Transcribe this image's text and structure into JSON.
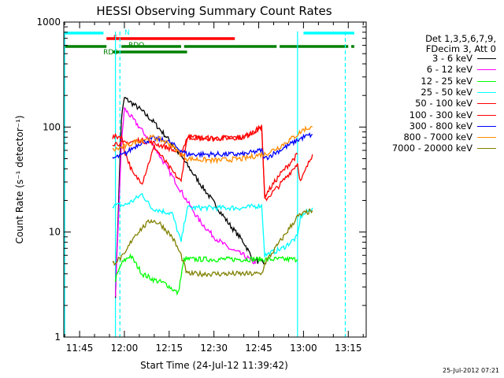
{
  "chart_data": {
    "type": "line",
    "title": "HESSI Observing Summary Count Rates",
    "xlabel": "Start Time (24-Jul-12 11:39:42)",
    "ylabel": "Count Rate (s⁻¹ detector⁻¹)",
    "yscale": "log",
    "ylim": [
      1,
      1000
    ],
    "y_ticks": [
      1,
      10,
      100,
      1000
    ],
    "y_tick_labels": [
      "1",
      "10",
      "100",
      "1000"
    ],
    "xlim": [
      "11:39:42",
      "13:21:00"
    ],
    "x_ticks": [
      "11:45",
      "12:00",
      "12:15",
      "12:30",
      "12:45",
      "13:00",
      "13:15"
    ],
    "x_minutes_axis_note": "x values below are clock times",
    "legend_header": [
      "Det 1,3,5,6,7,9,",
      "FDecim 3, Att 0"
    ],
    "legend_position": "right",
    "grid": false,
    "series": [
      {
        "name": "3 - 6 keV",
        "color": "#000000",
        "points": [
          [
            "11:57",
            "2.5"
          ],
          [
            "11:59",
            "120"
          ],
          [
            "12:00",
            "190"
          ],
          [
            "12:05",
            "150"
          ],
          [
            "12:10",
            "110"
          ],
          [
            "12:15",
            "75"
          ],
          [
            "12:20",
            "48"
          ],
          [
            "12:25",
            "30"
          ],
          [
            "12:30",
            "19"
          ],
          [
            "12:35",
            "12"
          ],
          [
            "12:40",
            "8"
          ],
          [
            "12:43",
            "5.5"
          ],
          [
            "12:47",
            "5"
          ]
        ]
      },
      {
        "name": "6 - 12 keV",
        "color": "#ff00ff",
        "points": [
          [
            "11:57",
            "2.5"
          ],
          [
            "11:59",
            "70"
          ],
          [
            "12:00",
            "150"
          ],
          [
            "12:05",
            "100"
          ],
          [
            "12:10",
            "65"
          ],
          [
            "12:15",
            "38"
          ],
          [
            "12:20",
            "22"
          ],
          [
            "12:25",
            "13"
          ],
          [
            "12:30",
            "9"
          ],
          [
            "12:35",
            "7"
          ],
          [
            "12:40",
            "6"
          ],
          [
            "12:44",
            "5"
          ]
        ]
      },
      {
        "name": "12 - 25 keV",
        "color": "#00ff00",
        "points": [
          [
            "11:57",
            "3.5"
          ],
          [
            "11:59",
            "5"
          ],
          [
            "12:02",
            "6"
          ],
          [
            "12:06",
            "4"
          ],
          [
            "12:10",
            "3.5"
          ],
          [
            "12:14",
            "3.2"
          ],
          [
            "12:18",
            "2.6"
          ],
          [
            "12:20",
            "5.5"
          ],
          [
            "12:30",
            "5.5"
          ],
          [
            "12:40",
            "5.5"
          ],
          [
            "12:47",
            "5.5"
          ],
          [
            "12:50",
            "5.5"
          ],
          [
            "12:56",
            "5.5"
          ],
          [
            "12:58",
            "5.5"
          ]
        ]
      },
      {
        "name": "25 - 50 keV",
        "color": "#00ffff",
        "points": [
          [
            "11:56",
            "18"
          ],
          [
            "11:58",
            "18"
          ],
          [
            "12:00",
            "18"
          ],
          [
            "12:03",
            "20"
          ],
          [
            "12:06",
            "23"
          ],
          [
            "12:09",
            "17"
          ],
          [
            "12:12",
            "16"
          ],
          [
            "12:16",
            "15"
          ],
          [
            "12:19",
            "8"
          ],
          [
            "12:21",
            "17"
          ],
          [
            "12:30",
            "17"
          ],
          [
            "12:40",
            "17"
          ],
          [
            "12:46",
            "18"
          ],
          [
            "12:47",
            "6"
          ],
          [
            "12:53",
            "7"
          ],
          [
            "12:58",
            "9"
          ],
          [
            "12:59",
            "14"
          ],
          [
            "13:03",
            "17"
          ]
        ]
      },
      {
        "name": "50 - 100 keV",
        "color": "#ff0000",
        "points": [
          [
            "11:56",
            "80"
          ],
          [
            "11:59",
            "82"
          ],
          [
            "12:00",
            "60"
          ],
          [
            "12:03",
            "35"
          ],
          [
            "12:06",
            "30"
          ],
          [
            "12:10",
            "65"
          ],
          [
            "12:13",
            "50"
          ],
          [
            "12:16",
            "38"
          ],
          [
            "12:19",
            "30"
          ],
          [
            "12:21",
            "80"
          ],
          [
            "12:30",
            "78"
          ],
          [
            "12:40",
            "80"
          ],
          [
            "12:46",
            "100"
          ],
          [
            "12:47",
            "20"
          ],
          [
            "12:52",
            "28"
          ],
          [
            "12:58",
            "45"
          ],
          [
            "12:59",
            "30"
          ],
          [
            "13:03",
            "55"
          ]
        ]
      },
      {
        "name": "100 - 300 keV",
        "color": "#ff0000",
        "points": [
          [
            "11:56",
            "70"
          ],
          [
            "12:00",
            "70"
          ],
          [
            "12:05",
            "75"
          ],
          [
            "12:10",
            "70"
          ],
          [
            "12:15",
            "63"
          ],
          [
            "12:19",
            "55"
          ],
          [
            "12:21",
            "80"
          ],
          [
            "12:30",
            "78"
          ],
          [
            "12:40",
            "80"
          ],
          [
            "12:46",
            "100"
          ],
          [
            "12:47",
            "22"
          ],
          [
            "12:52",
            "35"
          ],
          [
            "12:58",
            "55"
          ]
        ]
      },
      {
        "name": "300 - 800 keV",
        "color": "#0000ff",
        "points": [
          [
            "11:56",
            "50"
          ],
          [
            "12:00",
            "55"
          ],
          [
            "12:05",
            "70"
          ],
          [
            "12:10",
            "78"
          ],
          [
            "12:15",
            "72"
          ],
          [
            "12:19",
            "60"
          ],
          [
            "12:21",
            "55"
          ],
          [
            "12:30",
            "55"
          ],
          [
            "12:40",
            "55"
          ],
          [
            "12:46",
            "60"
          ],
          [
            "12:47",
            "50"
          ],
          [
            "12:52",
            "60"
          ],
          [
            "12:58",
            "75"
          ],
          [
            "13:00",
            "80"
          ],
          [
            "13:03",
            "85"
          ]
        ]
      },
      {
        "name": "800 - 7000 keV",
        "color": "#ff8c00",
        "points": [
          [
            "11:56",
            "60"
          ],
          [
            "12:00",
            "65"
          ],
          [
            "12:05",
            "75"
          ],
          [
            "12:10",
            "80"
          ],
          [
            "12:15",
            "70"
          ],
          [
            "12:19",
            "55"
          ],
          [
            "12:21",
            "50"
          ],
          [
            "12:30",
            "48"
          ],
          [
            "12:40",
            "50"
          ],
          [
            "12:46",
            "55"
          ],
          [
            "12:47",
            "55"
          ],
          [
            "12:52",
            "65"
          ],
          [
            "12:58",
            "85"
          ],
          [
            "13:00",
            "95"
          ],
          [
            "13:03",
            "100"
          ]
        ]
      },
      {
        "name": "7000 - 20000 keV",
        "color": "#808000",
        "points": [
          [
            "11:56",
            "5"
          ],
          [
            "12:00",
            "6"
          ],
          [
            "12:03",
            "9"
          ],
          [
            "12:06",
            "11"
          ],
          [
            "12:09",
            "13"
          ],
          [
            "12:12",
            "12"
          ],
          [
            "12:16",
            "9"
          ],
          [
            "12:19",
            "6"
          ],
          [
            "12:21",
            "4"
          ],
          [
            "12:30",
            "4"
          ],
          [
            "12:40",
            "4"
          ],
          [
            "12:46",
            "4"
          ],
          [
            "12:47",
            "5"
          ],
          [
            "12:52",
            "8"
          ],
          [
            "12:58",
            "14"
          ],
          [
            "13:00",
            "15"
          ],
          [
            "13:03",
            "16"
          ]
        ]
      }
    ],
    "flag_bars": [
      {
        "label": "N",
        "color": "#00ffff",
        "segments": [
          [
            "11:40",
            "11:53"
          ],
          [
            "13:00",
            "13:17"
          ]
        ]
      },
      {
        "label": "F",
        "color": "#ff0000",
        "segments": [
          [
            "11:54",
            "12:37"
          ]
        ]
      },
      {
        "label": "RDO",
        "color": "#008000",
        "segments": [
          [
            "11:40",
            "11:54"
          ],
          [
            "11:59",
            "12:19"
          ],
          [
            "12:20",
            "12:51"
          ],
          [
            "12:52",
            "13:15"
          ],
          [
            "13:16",
            "13:17"
          ]
        ]
      },
      {
        "label": "RD6",
        "color": "#008000",
        "segments": [
          [
            "11:56",
            "12:21"
          ]
        ]
      }
    ],
    "vertical_lines": [
      {
        "time": "11:40:00",
        "color": "#00ffff",
        "style": "solid"
      },
      {
        "time": "11:57:00",
        "color": "#00ffff",
        "style": "solid"
      },
      {
        "time": "11:58:30",
        "color": "#00ffff",
        "style": "dashed"
      },
      {
        "time": "12:58:00",
        "color": "#00ffff",
        "style": "solid"
      },
      {
        "time": "13:14:00",
        "color": "#00ffff",
        "style": "dashed"
      }
    ]
  },
  "footer": {
    "date": "25-Jul-2012 07:21"
  }
}
